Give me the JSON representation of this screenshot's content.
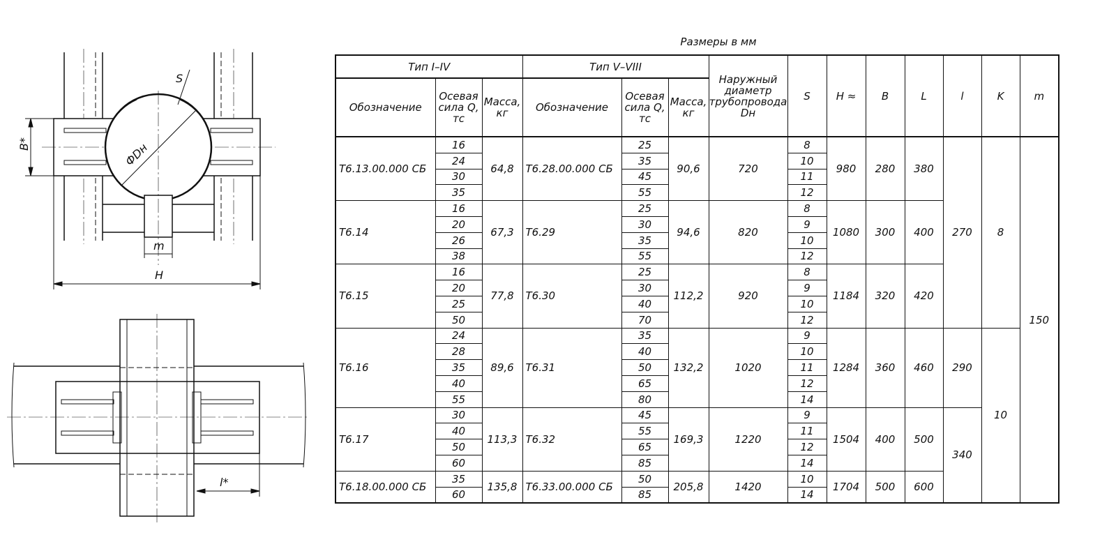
{
  "caption": "Размеры в мм",
  "drawing_labels": {
    "s": "S",
    "diameter": "ФDн",
    "b": "B*",
    "m": "m",
    "h": "H",
    "l": "l*"
  },
  "table": {
    "group_headers": [
      "Тип I–IV",
      "Тип V–VIII"
    ],
    "sub_headers": [
      "Обозначение",
      "Осевая сила Q, тс",
      "Масса, кг",
      "Обозначение",
      "Осевая сила Q, тс",
      "Масса, кг"
    ],
    "dn_header": "Наружный диаметр трубопровода Dн",
    "s_header": "S",
    "h_header": "H ≈",
    "b_header": "B",
    "L_header": "L",
    "l_header": "l",
    "k_header": "K",
    "m_header": "m",
    "groups": [
      {
        "des1": "Т6.13.00.000 СБ",
        "q1": [
          "16",
          "24",
          "30",
          "35"
        ],
        "mass1": "64,8",
        "des2": "Т6.28.00.000 СБ",
        "q2": [
          "25",
          "35",
          "45",
          "55"
        ],
        "mass2": "90,6",
        "dn": "720",
        "s": [
          "8",
          "10",
          "11",
          "12"
        ],
        "h": "980",
        "b": "280",
        "L": "380"
      },
      {
        "des1": "Т6.14",
        "q1": [
          "16",
          "20",
          "26",
          "38"
        ],
        "mass1": "67,3",
        "des2": "Т6.29",
        "q2": [
          "25",
          "30",
          "35",
          "55"
        ],
        "mass2": "94,6",
        "dn": "820",
        "s": [
          "8",
          "9",
          "10",
          "12"
        ],
        "h": "1080",
        "b": "300",
        "L": "400"
      },
      {
        "des1": "Т6.15",
        "q1": [
          "16",
          "20",
          "25",
          "50"
        ],
        "mass1": "77,8",
        "des2": "Т6.30",
        "q2": [
          "25",
          "30",
          "40",
          "70"
        ],
        "mass2": "112,2",
        "dn": "920",
        "s": [
          "8",
          "9",
          "10",
          "12"
        ],
        "h": "1184",
        "b": "320",
        "L": "420"
      },
      {
        "des1": "Т6.16",
        "q1": [
          "24",
          "28",
          "35",
          "40",
          "55"
        ],
        "mass1": "89,6",
        "des2": "Т6.31",
        "q2": [
          "35",
          "40",
          "50",
          "65",
          "80"
        ],
        "mass2": "132,2",
        "dn": "1020",
        "s": [
          "9",
          "10",
          "11",
          "12",
          "14"
        ],
        "h": "1284",
        "b": "360",
        "L": "460"
      },
      {
        "des1": "Т6.17",
        "q1": [
          "30",
          "40",
          "50",
          "60"
        ],
        "mass1": "113,3",
        "des2": "Т6.32",
        "q2": [
          "45",
          "55",
          "65",
          "85"
        ],
        "mass2": "169,3",
        "dn": "1220",
        "s": [
          "9",
          "11",
          "12",
          "14"
        ],
        "h": "1504",
        "b": "400",
        "L": "500"
      },
      {
        "des1": "Т6.18.00.000 СБ",
        "q1": [
          "35",
          "60"
        ],
        "mass1": "135,8",
        "des2": "Т6.33.00.000 СБ",
        "q2": [
          "50",
          "85"
        ],
        "mass2": "205,8",
        "dn": "1420",
        "s": [
          "10",
          "14"
        ],
        "h": "1704",
        "b": "500",
        "L": "600"
      }
    ],
    "l_spans": [
      {
        "value": "270",
        "groups": 3
      },
      {
        "value": "290",
        "groups": 1
      },
      {
        "value": "340",
        "groups": 2
      }
    ],
    "k_spans": [
      {
        "value": "8",
        "groups": 3
      },
      {
        "value": "10",
        "groups": 3
      }
    ],
    "m_value": "150"
  }
}
